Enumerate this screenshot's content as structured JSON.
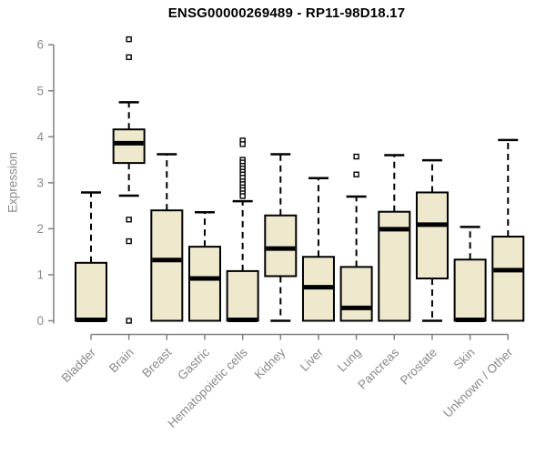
{
  "title": "ENSG00000269489 - RP11-98D18.17",
  "chart_data": {
    "type": "boxplot",
    "title": "ENSG00000269489 - RP11-98D18.17",
    "xlabel": "",
    "ylabel": "Expression",
    "ylim": [
      0,
      6
    ],
    "yticks": [
      0,
      1,
      2,
      3,
      4,
      5,
      6
    ],
    "grid": false,
    "legend": "none",
    "categories": [
      "Bladder",
      "Brain",
      "Breast",
      "Gastric",
      "Hematopoietic cells",
      "Kidney",
      "Liver",
      "Lung",
      "Pancreas",
      "Prostate",
      "Skin",
      "Unknown / Other"
    ],
    "boxes": [
      {
        "category": "Bladder",
        "whisker_low": 0,
        "q1": 0,
        "median": 0.02,
        "q3": 1.26,
        "whisker_high": 2.79,
        "outliers": []
      },
      {
        "category": "Brain",
        "whisker_low": 2.72,
        "q1": 3.43,
        "median": 3.86,
        "q3": 4.16,
        "whisker_high": 4.75,
        "outliers": [
          6.12,
          5.73,
          2.2,
          1.73,
          0
        ]
      },
      {
        "category": "Breast",
        "whisker_low": 0,
        "q1": 0,
        "median": 1.32,
        "q3": 2.4,
        "whisker_high": 3.62,
        "outliers": []
      },
      {
        "category": "Gastric",
        "whisker_low": 0,
        "q1": 0,
        "median": 0.92,
        "q3": 1.61,
        "whisker_high": 2.36,
        "outliers": []
      },
      {
        "category": "Hematopoietic cells",
        "whisker_low": 0,
        "q1": 0,
        "median": 0.02,
        "q3": 1.08,
        "whisker_high": 2.6,
        "outliers": [
          3.92,
          3.84,
          3.5,
          3.44,
          3.37,
          3.31,
          3.24,
          3.18,
          3.11,
          3.03,
          2.97,
          2.9,
          2.84,
          2.77,
          2.71
        ]
      },
      {
        "category": "Kidney",
        "whisker_low": 0,
        "q1": 0.97,
        "median": 1.57,
        "q3": 2.29,
        "whisker_high": 3.62,
        "outliers": []
      },
      {
        "category": "Liver",
        "whisker_low": 0,
        "q1": 0,
        "median": 0.73,
        "q3": 1.39,
        "whisker_high": 3.1,
        "outliers": []
      },
      {
        "category": "Lung",
        "whisker_low": 0,
        "q1": 0,
        "median": 0.28,
        "q3": 1.17,
        "whisker_high": 2.7,
        "outliers": [
          3.57,
          3.18
        ]
      },
      {
        "category": "Pancreas",
        "whisker_low": 0,
        "q1": 0,
        "median": 1.99,
        "q3": 2.37,
        "whisker_high": 3.6,
        "outliers": []
      },
      {
        "category": "Prostate",
        "whisker_low": 0,
        "q1": 0.92,
        "median": 2.09,
        "q3": 2.79,
        "whisker_high": 3.49,
        "outliers": []
      },
      {
        "category": "Skin",
        "whisker_low": 0,
        "q1": 0,
        "median": 0.02,
        "q3": 1.33,
        "whisker_high": 2.04,
        "outliers": []
      },
      {
        "category": "Unknown / Other",
        "whisker_low": 0,
        "q1": 0,
        "median": 1.1,
        "q3": 1.83,
        "whisker_high": 3.93,
        "outliers": []
      }
    ],
    "colors": {
      "box_fill": "#EEE8CD",
      "box_stroke": "#000000",
      "median": "#000000",
      "whisker": "#000000",
      "outlier_fill": "#ffffff",
      "axis": "#808080",
      "tick_label": "#8a8a8a",
      "title": "#000000",
      "background": "#ffffff"
    }
  }
}
